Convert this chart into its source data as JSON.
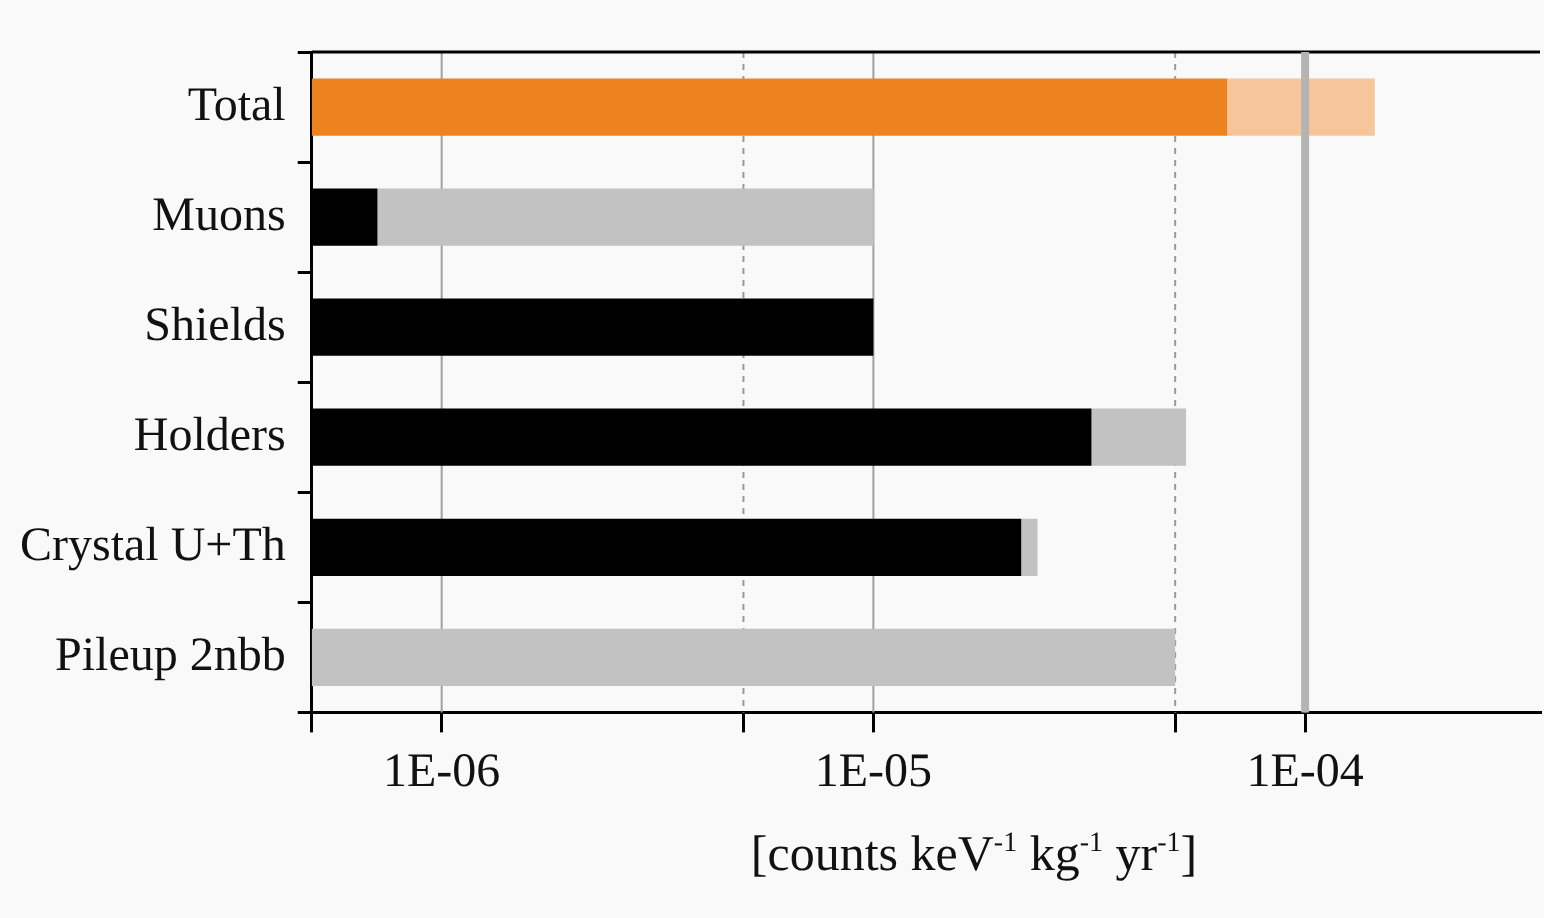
{
  "chart_data": {
    "type": "bar",
    "orientation": "horizontal",
    "stacked": true,
    "log": "x",
    "grid": "x",
    "legend": false,
    "xlabel": "[counts keV$^{-1}$ kg$^{-1}$ yr$^{-1}$]",
    "categories": [
      "Total",
      "Muons",
      "Shields",
      "Holders",
      "Crystal U+Th",
      "Pileup 2nbb"
    ],
    "series": [
      {
        "colors": [
          "#ec831e",
          "#000000",
          "#000000",
          "#000000",
          "#000000",
          "#000000"
        ],
        "values": [
          6.6e-05,
          7.1e-07,
          1e-05,
          3.2e-05,
          2.2e-05,
          null
        ]
      },
      {
        "colors": [
          "#f7c59a",
          "#c2c2c2",
          "#c2c2c2",
          "#c2c2c2",
          "#c2c2c2",
          "#c2c2c2"
        ],
        "values": [
          7.9e-05,
          9.3e-06,
          null,
          2.1e-05,
          2e-06,
          5e-05
        ]
      }
    ],
    "xlim": [
      5e-07,
      0.00035
    ],
    "xticks": [
      {
        "value": 5e-07,
        "label": null
      },
      {
        "value": 1e-06,
        "label": "1E-06"
      },
      {
        "value": 5e-06,
        "label": null
      },
      {
        "value": 1e-05,
        "label": "1E-05"
      },
      {
        "value": 5e-05,
        "label": null
      },
      {
        "value": 0.0001,
        "label": "1E-04"
      }
    ],
    "ref_lines": [
      {
        "axis": "x",
        "value": 0.0001,
        "color": "#b4b4b4"
      }
    ]
  }
}
